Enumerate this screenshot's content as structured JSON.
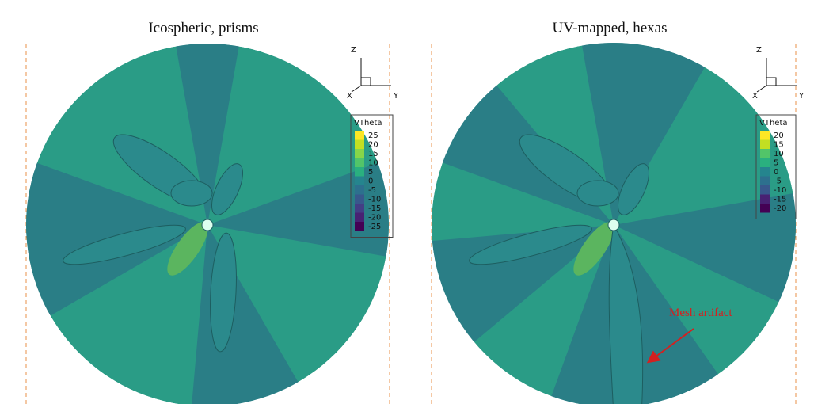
{
  "panels": [
    {
      "title": "Icospheric, prisms",
      "legend": {
        "title": "VTheta",
        "levels": [
          25,
          20,
          15,
          10,
          5,
          0,
          -5,
          -10,
          -15,
          -20,
          -25
        ]
      },
      "triad": {
        "z": "Z",
        "x": "X",
        "y": "Y"
      }
    },
    {
      "title": "UV-mapped, hexas",
      "legend": {
        "title": "VTheta",
        "levels": [
          20,
          15,
          10,
          5,
          0,
          -5,
          -10,
          -15,
          -20
        ]
      },
      "triad": {
        "z": "Z",
        "x": "X",
        "y": "Y"
      }
    }
  ],
  "annotation": "Mesh artifact"
}
